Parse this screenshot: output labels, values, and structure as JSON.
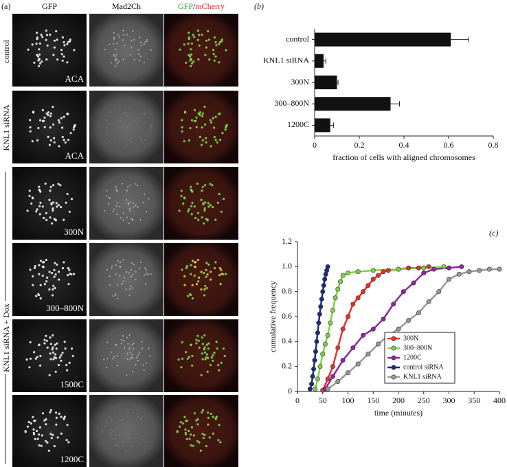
{
  "panel_a": {
    "label": "(a)",
    "columns": [
      [
        "GFP"
      ],
      [
        "Mad2Ch"
      ],
      [
        "GFP",
        "/",
        "mCherry"
      ]
    ],
    "column_colors": [
      [
        "#000000"
      ],
      [
        "#000000"
      ],
      [
        "#2aa02a",
        "#000000",
        "#e02020"
      ]
    ],
    "rows": [
      "control",
      "KNL1 siRNA"
    ],
    "group_label": "KNL1 siRNA + Dox",
    "image_labels": [
      "ACA",
      "ACA",
      "300N",
      "300–800N",
      "1500C",
      "1200C"
    ]
  },
  "chart_data": [
    {
      "type": "bar",
      "label": "(b)",
      "orientation": "horizontal",
      "categories": [
        "control",
        "KNL1 siRNA",
        "300N",
        "300–800N",
        "1200C"
      ],
      "values": [
        0.61,
        0.04,
        0.1,
        0.34,
        0.07
      ],
      "errors": [
        0.08,
        0.01,
        0.005,
        0.04,
        0.015
      ],
      "color": "#111111",
      "xlim": [
        0,
        0.8
      ],
      "xticks": [
        0,
        0.2,
        0.4,
        0.6,
        0.8
      ],
      "xlabel": "fraction of cells with aligned chromosomes"
    },
    {
      "type": "line",
      "label": "(c)",
      "xlabel": "time (minutes)",
      "ylabel": "cumulative frequency",
      "xlim": [
        0,
        400
      ],
      "xticks": [
        0,
        50,
        100,
        150,
        200,
        250,
        300,
        350,
        400
      ],
      "ylim": [
        0,
        1.2
      ],
      "yticks": [
        0,
        0.2,
        0.4,
        0.6,
        0.8,
        {
          "value": 1,
          "label": "1.0"
        },
        1.2
      ],
      "legend": "lower right",
      "series": [
        {
          "name": "300N",
          "color": "#e8302c",
          "x": [
            50,
            60,
            70,
            80,
            90,
            100,
            110,
            120,
            130,
            140,
            150,
            160,
            170,
            180,
            200,
            220,
            240,
            260
          ],
          "values": [
            0.01,
            0.1,
            0.2,
            0.35,
            0.5,
            0.6,
            0.7,
            0.75,
            0.8,
            0.85,
            0.9,
            0.93,
            0.96,
            0.97,
            0.98,
            0.99,
            0.99,
            1.0
          ]
        },
        {
          "name": "300–800N",
          "color": "#7ed04a",
          "x": [
            35,
            40,
            45,
            50,
            55,
            60,
            65,
            70,
            75,
            80,
            85,
            90,
            100,
            120,
            150,
            200,
            250,
            290
          ],
          "values": [
            0.02,
            0.1,
            0.2,
            0.3,
            0.38,
            0.45,
            0.55,
            0.65,
            0.75,
            0.82,
            0.88,
            0.93,
            0.95,
            0.96,
            0.97,
            0.98,
            0.99,
            1.0
          ]
        },
        {
          "name": "1200C",
          "color": "#8a2a9a",
          "x": [
            55,
            70,
            90,
            110,
            130,
            150,
            170,
            190,
            210,
            230,
            250,
            270,
            300,
            325
          ],
          "values": [
            0.02,
            0.12,
            0.25,
            0.35,
            0.45,
            0.5,
            0.58,
            0.7,
            0.8,
            0.87,
            0.95,
            0.98,
            0.99,
            1.0
          ]
        },
        {
          "name": "control siRNA",
          "color": "#1c2a80",
          "x": [
            25,
            28,
            30,
            32,
            34,
            36,
            38,
            40,
            42,
            44,
            46,
            48,
            50,
            52,
            54,
            56,
            58,
            60
          ],
          "values": [
            0.02,
            0.06,
            0.12,
            0.18,
            0.25,
            0.32,
            0.4,
            0.47,
            0.55,
            0.62,
            0.68,
            0.74,
            0.8,
            0.85,
            0.9,
            0.94,
            0.97,
            1.0
          ]
        },
        {
          "name": "KNL1 siRNA",
          "color": "#999999",
          "x": [
            60,
            80,
            100,
            120,
            140,
            160,
            180,
            200,
            220,
            240,
            260,
            280,
            300,
            320,
            340,
            360,
            380,
            400
          ],
          "values": [
            0.02,
            0.08,
            0.15,
            0.22,
            0.3,
            0.38,
            0.45,
            0.5,
            0.57,
            0.63,
            0.72,
            0.8,
            0.9,
            0.94,
            0.96,
            0.97,
            0.98,
            0.98
          ]
        }
      ]
    }
  ]
}
